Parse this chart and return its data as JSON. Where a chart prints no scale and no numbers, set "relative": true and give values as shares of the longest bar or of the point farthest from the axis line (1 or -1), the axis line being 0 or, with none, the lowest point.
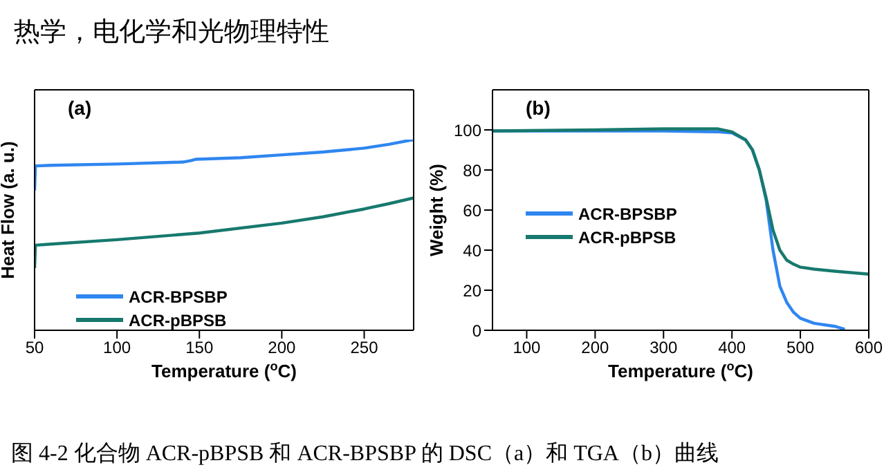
{
  "chart_data": [
    {
      "type": "line",
      "title": "热学，电化学和光物理特性",
      "xlabel": "Temperature ($^{o}$C)",
      "ylabel": "Heat Flow (a. u.)",
      "relative": true,
      "xlim": [
        50,
        280
      ],
      "xticks": [
        50,
        100,
        150,
        200,
        250
      ],
      "legend": "bottom left",
      "annotations": [
        "(a)"
      ],
      "line_style": "solid",
      "marker": "none",
      "series": [
        {
          "name": "ACR-BPSBP",
          "color": "#2f86f0",
          "x": [
            50,
            50.5,
            60,
            100,
            140,
            145,
            148,
            175,
            200,
            225,
            250,
            265,
            280
          ],
          "values": [
            0.733,
            0.862,
            0.865,
            0.872,
            0.882,
            0.89,
            0.897,
            0.905,
            0.92,
            0.935,
            0.955,
            0.975,
            1
          ]
        },
        {
          "name": "ACR-pBPSB",
          "color": "#17796e",
          "x": [
            50,
            50.5,
            60,
            100,
            150,
            200,
            225,
            250,
            265,
            280
          ],
          "values": [
            0.326,
            0.446,
            0.452,
            0.475,
            0.51,
            0.562,
            0.595,
            0.636,
            0.664,
            0.694
          ]
        }
      ]
    },
    {
      "type": "line",
      "xlabel": "Temperature ($^{o}$C)",
      "ylabel": "Weight (%)",
      "xlim": [
        50,
        600
      ],
      "xticks": [
        100,
        200,
        300,
        400,
        500,
        600
      ],
      "ylim": [
        0,
        120
      ],
      "yticks": [
        0,
        20,
        40,
        60,
        80,
        100
      ],
      "legend": "left",
      "annotations": [
        "(b)",
        "图 4-2  化合物 ACR-pBPSB 和 ACR-BPSBP 的 DSC（a）和 TGA（b）曲线"
      ],
      "line_style": "solid",
      "marker": "none",
      "series": [
        {
          "name": "ACR-BPSBP",
          "color": "#2f86f0",
          "x": [
            50,
            200,
            300,
            380,
            400,
            420,
            430,
            440,
            450,
            460,
            470,
            480,
            490,
            500,
            520,
            550,
            565
          ],
          "values": [
            99.5,
            99.5,
            99.5,
            99,
            98.5,
            95,
            90,
            80,
            65,
            40,
            22,
            14,
            9,
            6,
            3.5,
            2,
            0.5
          ]
        },
        {
          "name": "ACR-pBPSB",
          "color": "#17796e",
          "x": [
            50,
            200,
            300,
            380,
            400,
            420,
            430,
            440,
            450,
            460,
            470,
            480,
            490,
            500,
            520,
            550,
            600
          ],
          "values": [
            99.5,
            100,
            100.5,
            100.5,
            99,
            95,
            90,
            80,
            66,
            50,
            40,
            35,
            33,
            31.5,
            30.5,
            29.5,
            28
          ]
        }
      ]
    }
  ]
}
